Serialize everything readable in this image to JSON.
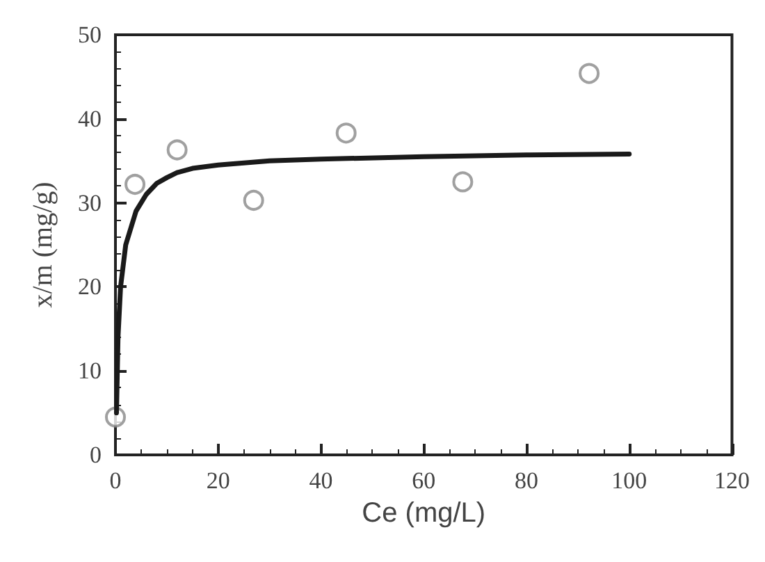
{
  "chart_data": {
    "type": "scatter",
    "xlabel": "Ce (mg/L)",
    "ylabel": "x/m (mg/g)",
    "xlim": [
      0,
      120
    ],
    "ylim": [
      0,
      50
    ],
    "xticks": [
      0,
      20,
      40,
      60,
      80,
      100,
      120
    ],
    "yticks": [
      0,
      10,
      20,
      30,
      40,
      50
    ],
    "grid": false,
    "series": [
      {
        "color": "#888888",
        "marker": "circle",
        "x": [
          0,
          3.8,
          12,
          26.9,
          44.9,
          67.6,
          92.2
        ],
        "values": [
          4.5,
          32.2,
          36.3,
          30.3,
          38.3,
          32.5,
          45.4
        ]
      },
      {
        "type": "line",
        "color": "#1a1a1a",
        "marker": "none",
        "line_style": "solid",
        "x": [
          0.2,
          0.5,
          1,
          2,
          4,
          6,
          8,
          10,
          12,
          15,
          20,
          30,
          40,
          60,
          80,
          100
        ],
        "values": [
          5,
          14,
          20,
          25,
          29,
          31,
          32.3,
          33,
          33.6,
          34.1,
          34.5,
          35,
          35.2,
          35.5,
          35.7,
          35.8
        ]
      }
    ]
  }
}
